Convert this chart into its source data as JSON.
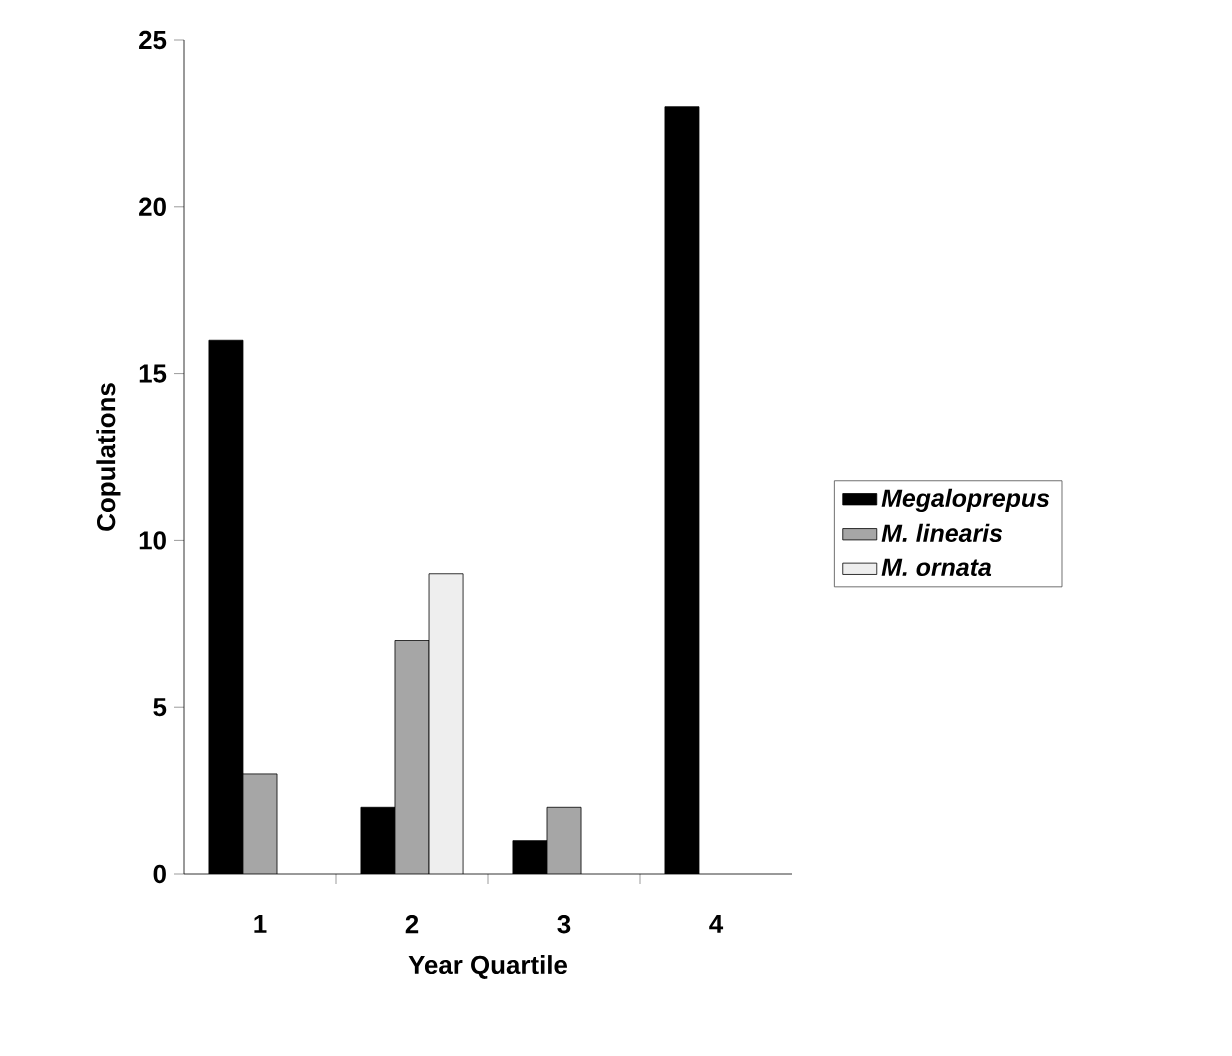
{
  "chart_data": {
    "type": "bar",
    "xlabel": "Year Quartile",
    "ylabel": "Copulations",
    "categories": [
      "1",
      "2",
      "3",
      "4"
    ],
    "series": [
      {
        "name": "Megaloprepus",
        "color": "#000000",
        "values": [
          16,
          2,
          1,
          23
        ]
      },
      {
        "name": "M. linearis",
        "color": "#a6a6a6",
        "values": [
          3,
          7,
          2,
          null
        ]
      },
      {
        "name": "M. ornata",
        "color": "#eeeeee",
        "values": [
          null,
          9,
          null,
          null
        ]
      }
    ],
    "ylim": [
      0,
      25
    ],
    "yticks": [
      0,
      5,
      10,
      15,
      20,
      25
    ],
    "legend": "right",
    "grid": false
  }
}
